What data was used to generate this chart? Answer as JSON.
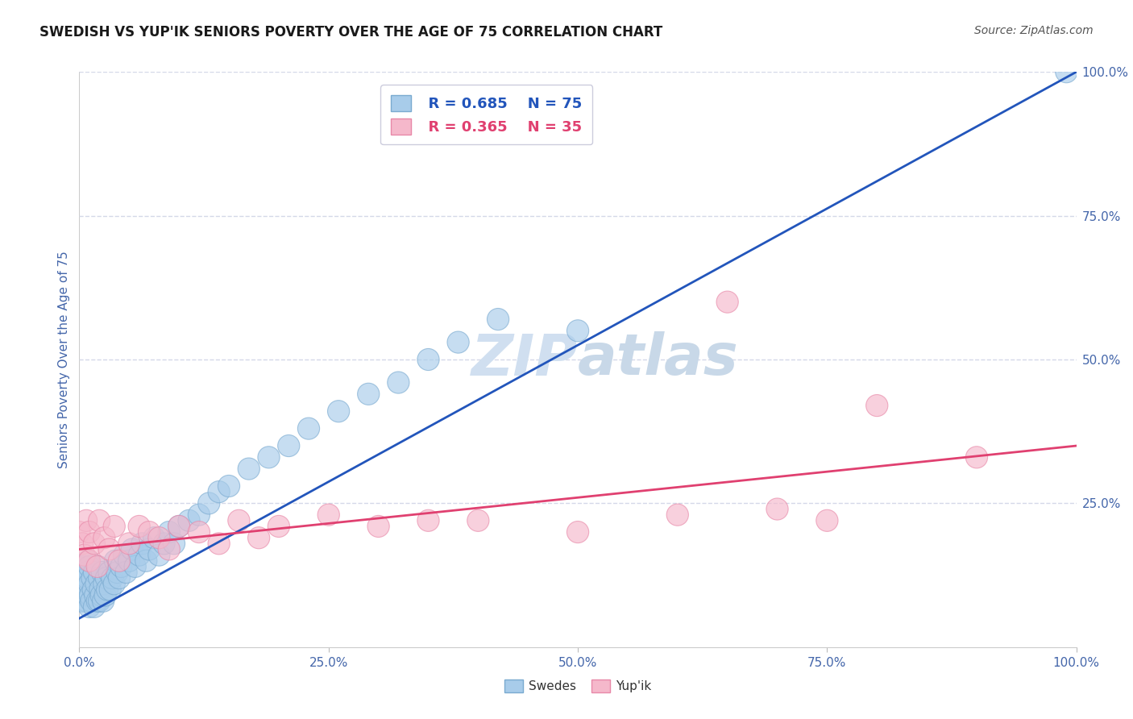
{
  "title": "SWEDISH VS YUP'IK SENIORS POVERTY OVER THE AGE OF 75 CORRELATION CHART",
  "source": "Source: ZipAtlas.com",
  "ylabel": "Seniors Poverty Over the Age of 75",
  "xlim": [
    0,
    1.0
  ],
  "ylim": [
    0,
    1.0
  ],
  "xticks": [
    0.0,
    0.25,
    0.5,
    0.75,
    1.0
  ],
  "xticklabels": [
    "0.0%",
    "25.0%",
    "50.0%",
    "75.0%",
    "100.0%"
  ],
  "ytick_positions": [
    0.25,
    0.5,
    0.75,
    1.0
  ],
  "ytick_labels": [
    "25.0%",
    "50.0%",
    "75.0%",
    "100.0%"
  ],
  "swedish_color": "#A8CCEA",
  "swedish_edge_color": "#7AAAD0",
  "yupik_color": "#F5B8CB",
  "yupik_edge_color": "#E888A8",
  "swedish_line_color": "#2255BB",
  "yupik_line_color": "#E04070",
  "watermark_color": "#D0DFF0",
  "watermark_color2": "#C8D8E8",
  "grid_color": "#D4D8E8",
  "title_color": "#1A1A1A",
  "tick_label_color": "#4466AA",
  "legend_box_color": "#FFFFFF",
  "legend_edge_color": "#DDDDEE",
  "swedish_r_text": "R = 0.685",
  "swedish_n_text": "N = 75",
  "yupik_r_text": "R = 0.365",
  "yupik_n_text": "N = 35",
  "swedish_x": [
    0.0,
    0.002,
    0.003,
    0.004,
    0.005,
    0.005,
    0.006,
    0.007,
    0.007,
    0.008,
    0.008,
    0.009,
    0.01,
    0.01,
    0.01,
    0.011,
    0.012,
    0.013,
    0.014,
    0.015,
    0.015,
    0.016,
    0.017,
    0.018,
    0.019,
    0.02,
    0.02,
    0.021,
    0.022,
    0.023,
    0.024,
    0.025,
    0.026,
    0.027,
    0.028,
    0.03,
    0.031,
    0.033,
    0.035,
    0.036,
    0.038,
    0.04,
    0.042,
    0.045,
    0.047,
    0.05,
    0.053,
    0.056,
    0.06,
    0.063,
    0.067,
    0.07,
    0.075,
    0.08,
    0.085,
    0.09,
    0.095,
    0.1,
    0.11,
    0.12,
    0.13,
    0.14,
    0.15,
    0.17,
    0.19,
    0.21,
    0.23,
    0.26,
    0.29,
    0.32,
    0.35,
    0.38,
    0.42,
    0.5,
    0.99
  ],
  "swedish_y": [
    0.14,
    0.1,
    0.08,
    0.12,
    0.09,
    0.14,
    0.1,
    0.08,
    0.13,
    0.09,
    0.12,
    0.15,
    0.07,
    0.11,
    0.14,
    0.09,
    0.08,
    0.12,
    0.1,
    0.07,
    0.13,
    0.09,
    0.11,
    0.08,
    0.14,
    0.08,
    0.12,
    0.1,
    0.09,
    0.13,
    0.08,
    0.11,
    0.09,
    0.12,
    0.1,
    0.13,
    0.1,
    0.12,
    0.11,
    0.15,
    0.13,
    0.12,
    0.14,
    0.16,
    0.13,
    0.15,
    0.17,
    0.14,
    0.16,
    0.18,
    0.15,
    0.17,
    0.19,
    0.16,
    0.18,
    0.2,
    0.18,
    0.21,
    0.22,
    0.23,
    0.25,
    0.27,
    0.28,
    0.31,
    0.33,
    0.35,
    0.38,
    0.41,
    0.44,
    0.46,
    0.5,
    0.53,
    0.57,
    0.55,
    1.0
  ],
  "yupik_x": [
    0.0,
    0.003,
    0.005,
    0.007,
    0.01,
    0.01,
    0.015,
    0.018,
    0.02,
    0.025,
    0.03,
    0.035,
    0.04,
    0.05,
    0.06,
    0.07,
    0.08,
    0.09,
    0.1,
    0.12,
    0.14,
    0.16,
    0.18,
    0.2,
    0.25,
    0.3,
    0.35,
    0.4,
    0.5,
    0.6,
    0.65,
    0.7,
    0.75,
    0.8,
    0.9
  ],
  "yupik_y": [
    0.2,
    0.18,
    0.16,
    0.22,
    0.15,
    0.2,
    0.18,
    0.14,
    0.22,
    0.19,
    0.17,
    0.21,
    0.15,
    0.18,
    0.21,
    0.2,
    0.19,
    0.17,
    0.21,
    0.2,
    0.18,
    0.22,
    0.19,
    0.21,
    0.23,
    0.21,
    0.22,
    0.22,
    0.2,
    0.23,
    0.6,
    0.24,
    0.22,
    0.42,
    0.33
  ],
  "swedish_line_x0": 0.0,
  "swedish_line_y0": 0.05,
  "swedish_line_x1": 1.0,
  "swedish_line_y1": 1.0,
  "yupik_line_x0": 0.0,
  "yupik_line_y0": 0.17,
  "yupik_line_x1": 1.0,
  "yupik_line_y1": 0.35
}
